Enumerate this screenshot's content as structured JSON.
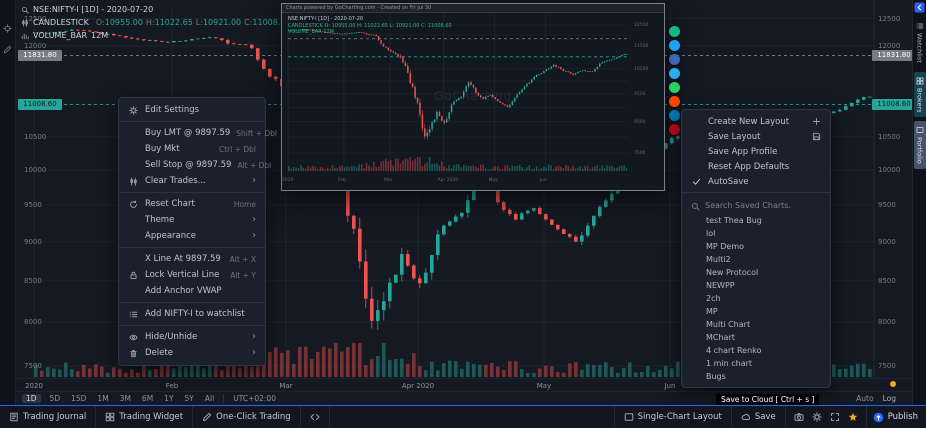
{
  "colors": {
    "up": "#26a69a",
    "down": "#ef5350",
    "accent": "#2962ff",
    "badge_gray": "#787b86",
    "bg": "#141922"
  },
  "legend": {
    "symbol": "NSE:NIFTY-I [1D] - 2020-07-20",
    "series": "CANDLESTICK",
    "ohlc": [
      {
        "k": "O:",
        "v": "10955.00"
      },
      {
        "k": "H:",
        "v": "11022.65"
      },
      {
        "k": "L:",
        "v": "10921.00"
      },
      {
        "k": "C:",
        "v": "11008.6"
      }
    ],
    "volume_label": "VOLUME_BAR",
    "volume_value": "12M"
  },
  "price_axis": {
    "values": [
      12500,
      12000,
      10500,
      10000,
      9500,
      9000,
      8500,
      8000,
      7500
    ],
    "badge_gray": "11831.80",
    "badge_green": "11008.60"
  },
  "time_axis": [
    {
      "label": "2020",
      "day": 0
    },
    {
      "label": "Feb",
      "day": 23
    },
    {
      "label": "Mar",
      "day": 42
    },
    {
      "label": "Apr 2020",
      "day": 64
    },
    {
      "label": "May",
      "day": 85
    },
    {
      "label": "Jun",
      "day": 106
    }
  ],
  "timeframes": [
    "1D",
    "5D",
    "15D",
    "1M",
    "3M",
    "6M",
    "1Y",
    "5Y",
    "All"
  ],
  "timezone": "UTC+02:00",
  "scale": {
    "auto": "Auto",
    "log": "Log"
  },
  "left_toolbar": [
    "crosshair",
    "pencil"
  ],
  "context_menu": {
    "sections": [
      {
        "items": [
          {
            "icon": "gear",
            "label": "Edit Settings"
          }
        ]
      },
      {
        "items": [
          {
            "label": "Buy LMT @ 9897.59",
            "shortcut": "Shift + Dbl"
          },
          {
            "label": "Buy Mkt",
            "shortcut": "Ctrl + Dbl"
          },
          {
            "label": "Sell Stop @ 9897.59",
            "shortcut": "Alt + Dbl"
          },
          {
            "icon": "candles",
            "label": "Clear Trades...",
            "submenu": true
          }
        ]
      },
      {
        "items": [
          {
            "icon": "reset",
            "label": "Reset Chart",
            "shortcut": "Home"
          },
          {
            "label": "Theme",
            "submenu": true
          },
          {
            "label": "Appearance",
            "submenu": true
          }
        ]
      },
      {
        "items": [
          {
            "label": "X Line At 9897.59",
            "shortcut": "Alt + X"
          },
          {
            "icon": "lock",
            "label": "Lock Vertical Line",
            "shortcut": "Alt + Y"
          },
          {
            "label": "Add Anchor VWAP"
          }
        ]
      },
      {
        "items": [
          {
            "icon": "list",
            "label": "Add NIFTY-I to watchlist"
          }
        ]
      },
      {
        "items": [
          {
            "icon": "eye",
            "label": "Hide/Unhide",
            "submenu": true
          },
          {
            "icon": "trash",
            "label": "Delete",
            "submenu": true
          }
        ]
      }
    ]
  },
  "layout_menu": {
    "items": [
      {
        "label": "Create New Layout",
        "right_icon": "plus"
      },
      {
        "label": "Save Layout",
        "right_icon": "floppy"
      },
      {
        "label": "Save App Profile"
      },
      {
        "label": "Reset App Defaults"
      },
      {
        "label": "AutoSave",
        "left_icon": "check"
      }
    ],
    "search_placeholder": "Search Saved Charts.",
    "saved_charts": [
      "test Thea Bug",
      "lol",
      "MP Demo",
      "Multi2",
      "New Protocol",
      "NEWPP",
      "2ch",
      "MP",
      "Multi Chart",
      "MChart",
      "4 chart Renko",
      "1 min chart",
      "Bugs"
    ]
  },
  "popup": {
    "title": "Charts powered by GoCharting.com  -  Created on Fri Jul 30",
    "legend": [
      "NSE:NIFTY-I [1D] - 2020-07-20",
      "CANDLESTICK  O: 10955.00  H: 11022.65  L: 10921.00  C: 11008.60",
      "VOLUME_BAR  12M"
    ],
    "watermark": "GoCharting",
    "share_icons": [
      {
        "name": "link",
        "color": "#10b981"
      },
      {
        "name": "twitter",
        "color": "#1da1f2"
      },
      {
        "name": "facebook",
        "color": "#4267b2"
      },
      {
        "name": "telegram",
        "color": "#2aabee"
      },
      {
        "name": "whatsapp",
        "color": "#25d366"
      },
      {
        "name": "reddit",
        "color": "#ff4500"
      },
      {
        "name": "linkedin",
        "color": "#0077b5"
      },
      {
        "name": "pinterest",
        "color": "#bd081c"
      }
    ]
  },
  "tooltip": "Save to Cloud [ Ctrl + s ]",
  "bottom_bar": {
    "left": [
      {
        "icon": "journal",
        "label": "Trading Journal"
      },
      {
        "icon": "widget",
        "label": "Trading Widget"
      },
      {
        "icon": "pencil",
        "label": "One-Click Trading"
      },
      {
        "icon": "code",
        "label": ""
      }
    ],
    "right": [
      {
        "icon": "layout",
        "label": "Single-Chart Layout"
      },
      {
        "icon": "cloud",
        "label": "Save"
      }
    ],
    "tool_icons": [
      "camera",
      "gear",
      "fullscreen",
      "star"
    ],
    "publish": "Publish"
  },
  "side_tabs": [
    {
      "label": "Watchlist",
      "icon": "list"
    },
    {
      "label": "Brokers",
      "icon": "widget"
    },
    {
      "label": "Portfolio",
      "icon": "layout"
    }
  ],
  "chart_data": {
    "type": "candlestick",
    "symbol": "NSE:NIFTY-I",
    "interval": "1D",
    "count": 140,
    "price_top": 12500,
    "price_bottom": 7500,
    "current_price": 11008.6,
    "alert_price": 11831.8,
    "anchors": [
      [
        0,
        12230
      ],
      [
        8,
        12320
      ],
      [
        14,
        12220
      ],
      [
        23,
        12090
      ],
      [
        30,
        12180
      ],
      [
        37,
        11940
      ],
      [
        40,
        11560
      ],
      [
        44,
        11280
      ],
      [
        47,
        10750
      ],
      [
        50,
        10100
      ],
      [
        53,
        9150
      ],
      [
        55,
        8500
      ],
      [
        57,
        7650
      ],
      [
        59,
        8150
      ],
      [
        62,
        8700
      ],
      [
        65,
        8350
      ],
      [
        68,
        8950
      ],
      [
        72,
        9250
      ],
      [
        75,
        9750
      ],
      [
        78,
        9350
      ],
      [
        81,
        9150
      ],
      [
        84,
        9300
      ],
      [
        88,
        9050
      ],
      [
        91,
        8900
      ],
      [
        95,
        9350
      ],
      [
        99,
        9750
      ],
      [
        103,
        10050
      ],
      [
        107,
        10250
      ],
      [
        110,
        10500
      ],
      [
        114,
        10300
      ],
      [
        118,
        10150
      ],
      [
        122,
        10350
      ],
      [
        126,
        10300
      ],
      [
        130,
        10650
      ],
      [
        134,
        10850
      ],
      [
        139,
        11005
      ]
    ]
  }
}
